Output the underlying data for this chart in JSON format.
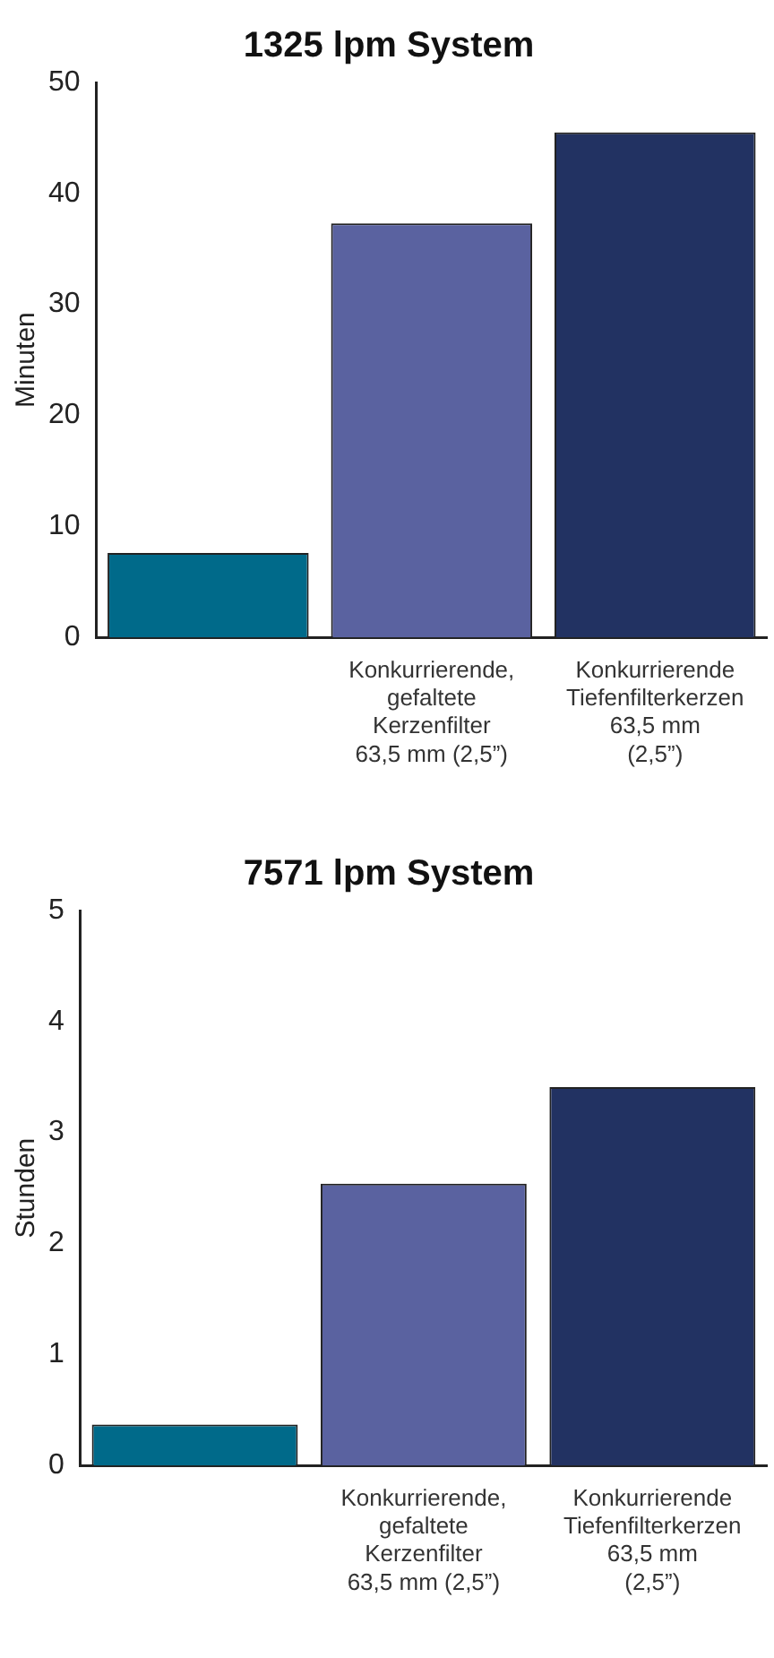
{
  "chart_data": [
    {
      "type": "bar",
      "title": "1325 lpm System",
      "ylabel": "Minuten",
      "categories": [
        null,
        "Konkurrierende,\ngefaltete\nKerzenfilter\n63,5 mm (2,5”)",
        "Konkurrierende\nTiefenfilterkerzen\n63,5 mm\n(2,5”)"
      ],
      "values": [
        7.6,
        37.3,
        45.5
      ],
      "colors": [
        "#006a8a",
        "#5a62a0",
        "#223262"
      ],
      "ylim": [
        0,
        50
      ],
      "yticks": [
        0,
        10,
        20,
        30,
        40,
        50
      ],
      "grid": false,
      "legend": false
    },
    {
      "type": "bar",
      "title": "7571 lpm System",
      "ylabel": "Stunden",
      "categories": [
        null,
        "Konkurrierende,\ngefaltete\nKerzenfilter\n63,5 mm (2,5”)",
        "Konkurrierende\nTiefenfilterkerzen\n63,5 mm\n(2,5”)"
      ],
      "values": [
        0.37,
        2.54,
        3.41
      ],
      "colors": [
        "#006a8a",
        "#5a62a0",
        "#223262"
      ],
      "ylim": [
        0,
        5
      ],
      "yticks": [
        0,
        1,
        2,
        3,
        4,
        5
      ],
      "grid": false,
      "legend": false
    }
  ]
}
